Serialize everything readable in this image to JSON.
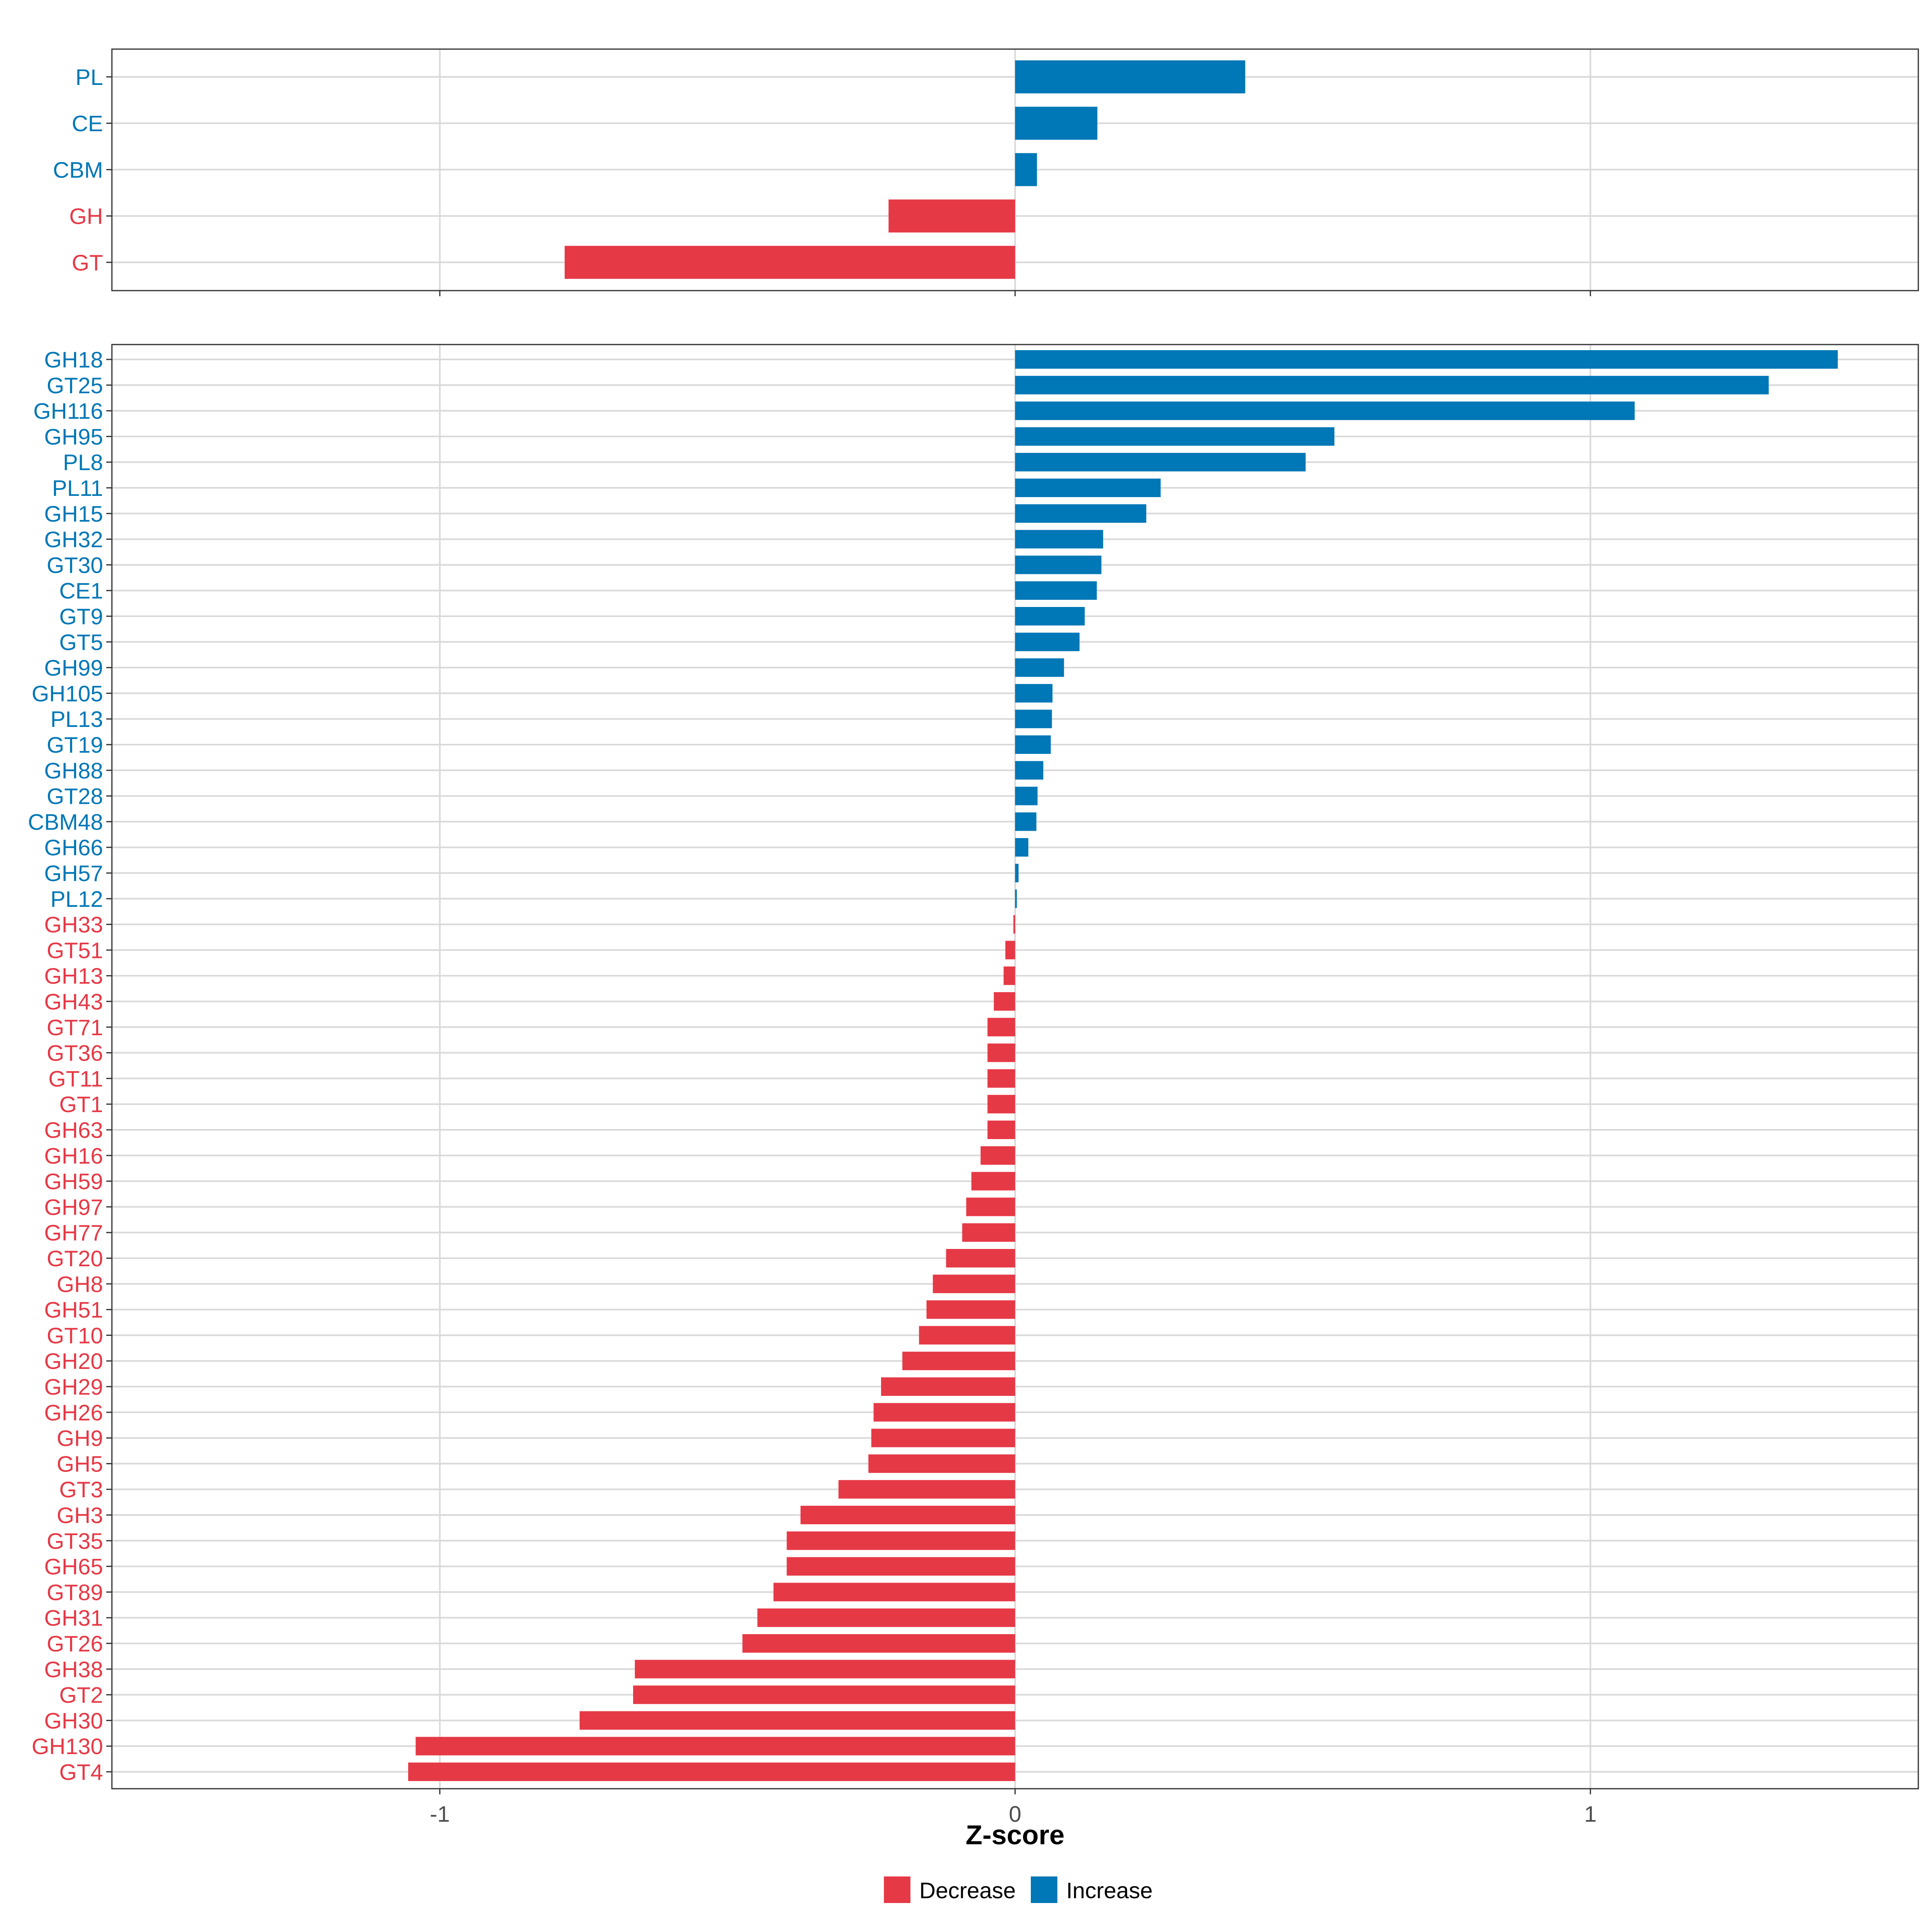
{
  "colors": {
    "decrease": "#E63946",
    "increase": "#0077B6"
  },
  "chart_data": [
    {
      "type": "bar",
      "orientation": "horizontal",
      "panel": "top",
      "title": "",
      "categories": [
        "PL",
        "CE",
        "CBM",
        "GH",
        "GT"
      ],
      "values": [
        0.4,
        0.143,
        0.038,
        -0.22,
        -0.783
      ],
      "xlim": [
        -1.57,
        1.57
      ],
      "xticks": [
        -1,
        0,
        1
      ],
      "grid": true
    },
    {
      "type": "bar",
      "orientation": "horizontal",
      "panel": "bottom",
      "title": "",
      "categories": [
        "GH18",
        "GT25",
        "GH116",
        "GH95",
        "PL8",
        "PL11",
        "GH15",
        "GH32",
        "GT30",
        "CE1",
        "GT9",
        "GT5",
        "GH99",
        "GH105",
        "PL13",
        "GT19",
        "GH88",
        "GT28",
        "CBM48",
        "GH66",
        "GH57",
        "PL12",
        "GH33",
        "GT51",
        "GH13",
        "GH43",
        "GT71",
        "GT36",
        "GT11",
        "GT1",
        "GH63",
        "GH16",
        "GH59",
        "GH97",
        "GH77",
        "GT20",
        "GH8",
        "GH51",
        "GT10",
        "GH20",
        "GH29",
        "GH26",
        "GH9",
        "GH5",
        "GT3",
        "GH3",
        "GT35",
        "GH65",
        "GT89",
        "GH31",
        "GT26",
        "GH38",
        "GT2",
        "GH30",
        "GH130",
        "GT4"
      ],
      "values": [
        1.43,
        1.31,
        1.077,
        0.555,
        0.505,
        0.253,
        0.228,
        0.153,
        0.15,
        0.142,
        0.121,
        0.112,
        0.085,
        0.065,
        0.064,
        0.062,
        0.049,
        0.039,
        0.037,
        0.023,
        0.006,
        0.003,
        -0.003,
        -0.017,
        -0.02,
        -0.037,
        -0.048,
        -0.048,
        -0.048,
        -0.048,
        -0.048,
        -0.06,
        -0.076,
        -0.085,
        -0.092,
        -0.12,
        -0.143,
        -0.154,
        -0.167,
        -0.196,
        -0.233,
        -0.246,
        -0.25,
        -0.255,
        -0.307,
        -0.373,
        -0.397,
        -0.397,
        -0.42,
        -0.448,
        -0.474,
        -0.661,
        -0.664,
        -0.757,
        -1.042,
        -1.055
      ],
      "xlim": [
        -1.57,
        1.57
      ],
      "xticks": [
        -1,
        0,
        1
      ],
      "xtick_labels": [
        "-1",
        "0",
        "1"
      ],
      "xlabel": "Z-score",
      "grid": true
    }
  ],
  "legend": {
    "position": "bottom",
    "items": [
      {
        "label": "Decrease",
        "color": "#E63946"
      },
      {
        "label": "Increase",
        "color": "#0077B6"
      }
    ]
  }
}
